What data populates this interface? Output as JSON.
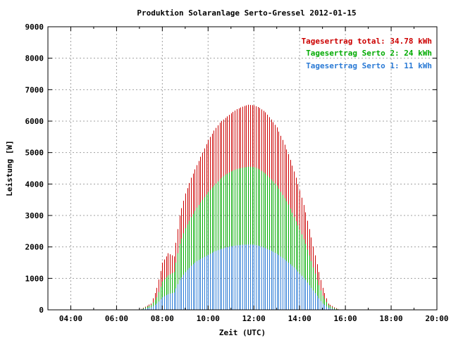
{
  "chart_data": {
    "type": "bar",
    "title": "Produktion Solaranlage Serto-Gressel 2012-01-15",
    "xlabel": "Zeit (UTC)",
    "ylabel": "Leistung [W]",
    "xlim": [
      3.0,
      20.0
    ],
    "ylim": [
      0,
      9000
    ],
    "x_ticks": [
      4,
      6,
      8,
      10,
      12,
      14,
      16,
      18,
      20
    ],
    "x_tick_labels": [
      "04:00",
      "06:00",
      "08:00",
      "10:00",
      "12:00",
      "14:00",
      "16:00",
      "18:00",
      "20:00"
    ],
    "y_ticks": [
      0,
      1000,
      2000,
      3000,
      4000,
      5000,
      6000,
      7000,
      8000,
      9000
    ],
    "y_tick_labels": [
      "0",
      "1000",
      "2000",
      "3000",
      "4000",
      "5000",
      "6000",
      "7000",
      "8000",
      "9000"
    ],
    "grid": true,
    "legend_position": "top-right",
    "x_unit": "hour (UTC)",
    "series": [
      {
        "name": "Tagesertrag total: 34.78 kWh",
        "color": "#cc0000",
        "x": [
          7.0,
          7.5,
          7.75,
          8.0,
          8.25,
          8.5,
          8.75,
          9.0,
          9.25,
          9.5,
          9.75,
          10.0,
          10.25,
          10.5,
          10.75,
          11.0,
          11.25,
          11.5,
          11.75,
          12.0,
          12.25,
          12.5,
          12.75,
          13.0,
          13.25,
          13.5,
          13.75,
          14.0,
          14.25,
          14.5,
          14.75,
          15.0,
          15.25,
          15.5,
          15.75,
          16.0
        ],
        "values": [
          0,
          200,
          700,
          1500,
          1800,
          1700,
          3000,
          3700,
          4200,
          4600,
          5000,
          5400,
          5700,
          5950,
          6100,
          6250,
          6380,
          6460,
          6520,
          6500,
          6420,
          6280,
          6050,
          5800,
          5400,
          4950,
          4400,
          3800,
          3100,
          2300,
          1450,
          700,
          200,
          80,
          0,
          0
        ]
      },
      {
        "name": "Tagesertrag Serto 2: 24 kWh",
        "color": "#00aa00",
        "x": [
          7.0,
          7.5,
          7.75,
          8.0,
          8.25,
          8.5,
          8.75,
          9.0,
          9.25,
          9.5,
          9.75,
          10.0,
          10.25,
          10.5,
          10.75,
          11.0,
          11.25,
          11.5,
          11.75,
          12.0,
          12.25,
          12.5,
          12.75,
          13.0,
          13.25,
          13.5,
          13.75,
          14.0,
          14.25,
          14.5,
          14.75,
          15.0,
          15.25,
          15.5,
          15.75,
          16.0
        ],
        "values": [
          0,
          150,
          400,
          900,
          1100,
          1200,
          2100,
          2600,
          2950,
          3250,
          3500,
          3750,
          3950,
          4150,
          4300,
          4400,
          4480,
          4520,
          4550,
          4540,
          4460,
          4330,
          4150,
          3950,
          3650,
          3350,
          2950,
          2550,
          2100,
          1550,
          950,
          450,
          150,
          50,
          0,
          0
        ]
      },
      {
        "name": "Tagesertrag Serto 1: 11 kWh",
        "color": "#2a7ad5",
        "x": [
          7.0,
          7.5,
          7.75,
          8.0,
          8.25,
          8.5,
          8.75,
          9.0,
          9.25,
          9.5,
          9.75,
          10.0,
          10.25,
          10.5,
          10.75,
          11.0,
          11.25,
          11.5,
          11.75,
          12.0,
          12.25,
          12.5,
          12.75,
          13.0,
          13.25,
          13.5,
          13.75,
          14.0,
          14.25,
          14.5,
          14.75,
          15.0,
          15.25,
          15.5,
          15.75,
          16.0
        ],
        "values": [
          0,
          80,
          200,
          400,
          500,
          550,
          950,
          1200,
          1400,
          1550,
          1650,
          1750,
          1850,
          1920,
          1980,
          2020,
          2050,
          2070,
          2080,
          2070,
          2030,
          1960,
          1880,
          1780,
          1650,
          1500,
          1350,
          1150,
          950,
          700,
          450,
          200,
          70,
          20,
          0,
          0
        ]
      }
    ]
  }
}
